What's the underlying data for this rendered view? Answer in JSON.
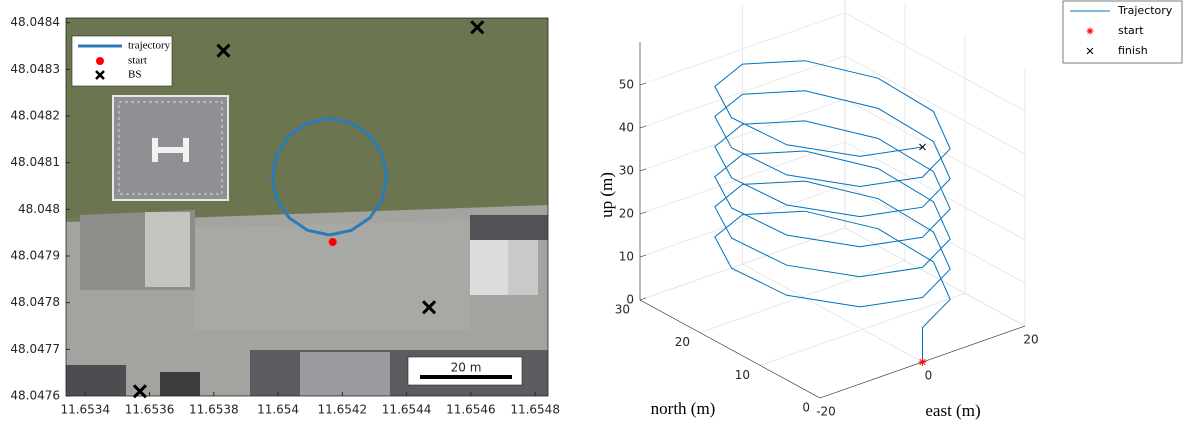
{
  "chart_data": [
    {
      "type": "map",
      "xlim": [
        11.65334,
        11.65484
      ],
      "ylim": [
        48.0476,
        48.04841
      ],
      "xticks": [
        11.6534,
        11.6536,
        11.6538,
        11.654,
        11.6542,
        11.6544,
        11.6546,
        11.6548
      ],
      "yticks": [
        48.0476,
        48.0477,
        48.0478,
        48.0479,
        48.048,
        48.0481,
        48.0482,
        48.0483,
        48.0484
      ],
      "series": [
        {
          "name": "trajectory",
          "color": "#2b7bba",
          "x": [
            11.65416,
            11.654228,
            11.654286,
            11.654325,
            11.654338,
            11.654325,
            11.654286,
            11.654228,
            11.65416,
            11.654092,
            11.654034,
            11.653996,
            11.653982,
            11.653996,
            11.654034,
            11.654092,
            11.65416
          ],
          "y": [
            48.047945,
            48.047955,
            48.047982,
            48.048022,
            48.04807,
            48.048118,
            48.048158,
            48.048185,
            48.048195,
            48.048185,
            48.048158,
            48.048118,
            48.04807,
            48.048022,
            48.047982,
            48.047955,
            48.047945
          ]
        },
        {
          "name": "start",
          "color": "#ff0000",
          "x": [
            11.65417
          ],
          "y": [
            48.04793
          ]
        },
        {
          "name": "BS",
          "color": "#000000",
          "x": [
            11.65383,
            11.65462,
            11.65447,
            11.65357
          ],
          "y": [
            48.04834,
            48.04839,
            48.04779,
            48.04761
          ]
        }
      ],
      "annotation": "20 m"
    },
    {
      "type": "line3d",
      "xlabel": "east (m)",
      "ylabel": "north (m)",
      "zlabel": "up (m)",
      "xlim": [
        -20,
        20
      ],
      "ylim": [
        0,
        30
      ],
      "zlim": [
        0,
        60
      ],
      "xticks": [
        -20,
        0,
        20
      ],
      "yticks": [
        0,
        10,
        20,
        30
      ],
      "zticks": [
        0,
        10,
        20,
        30,
        40,
        50
      ],
      "grid": true,
      "series": [
        {
          "name": "Trajectory",
          "color": "#0072bd",
          "x": [
            0,
            0,
            8.8,
            14.3,
            14.3,
            8.8,
            0,
            -8.8,
            -14.3,
            -14.3,
            -8.8,
            0,
            8.8,
            14.3,
            14.3,
            8.8,
            0,
            -8.8,
            -14.3,
            -14.3,
            -8.8,
            0,
            8.8,
            14.3,
            14.3,
            8.8,
            0,
            -8.8,
            -14.3,
            -14.3,
            -8.8,
            0,
            8.8,
            14.3,
            14.3,
            8.8,
            0,
            -8.8,
            -14.3,
            -14.3,
            -8.8,
            0,
            8.8,
            14.3,
            14.3,
            8.8,
            0,
            -8.8,
            -14.3,
            -14.3,
            -8.8,
            0,
            8.8,
            14.3,
            14.3,
            8.8,
            0,
            -8.8,
            -14.3,
            -14.3,
            -8.8,
            0
          ],
          "y": [
            0,
            0,
            2.9,
            10.4,
            19.6,
            27.1,
            30,
            27.1,
            19.6,
            10.4,
            2.9,
            0,
            2.9,
            10.4,
            19.6,
            27.1,
            30,
            27.1,
            19.6,
            10.4,
            2.9,
            0,
            2.9,
            10.4,
            19.6,
            27.1,
            30,
            27.1,
            19.6,
            10.4,
            2.9,
            0,
            2.9,
            10.4,
            19.6,
            27.1,
            30,
            27.1,
            19.6,
            10.4,
            2.9,
            0,
            2.9,
            10.4,
            19.6,
            27.1,
            30,
            27.1,
            19.6,
            10.4,
            2.9,
            0,
            2.9,
            10.4,
            19.6,
            27.1,
            30,
            27.1,
            19.6,
            10.4,
            2.9,
            0
          ],
          "z": [
            0,
            8,
            8.7,
            9.4,
            10.1,
            10.8,
            11.5,
            12.2,
            12.9,
            13.6,
            14.3,
            15,
            15.7,
            16.4,
            17.1,
            17.8,
            18.5,
            19.2,
            19.9,
            20.6,
            21.3,
            22,
            22.7,
            23.4,
            24.1,
            24.8,
            25.5,
            26.2,
            26.9,
            27.6,
            28.3,
            29,
            29.7,
            30.4,
            31.1,
            31.8,
            32.5,
            33.2,
            33.9,
            34.6,
            35.3,
            36,
            36.7,
            37.4,
            38.1,
            38.8,
            39.5,
            40.2,
            40.9,
            41.6,
            42.3,
            43,
            43.7,
            44.4,
            45.1,
            45.8,
            46.5,
            47.2,
            47.9,
            48.6,
            49.3,
            50
          ]
        },
        {
          "name": "start",
          "color": "#ff0000",
          "x": [
            0
          ],
          "y": [
            0
          ],
          "z": [
            0
          ]
        },
        {
          "name": "finish",
          "color": "#000000",
          "x": [
            0
          ],
          "y": [
            0
          ],
          "z": [
            50
          ]
        }
      ]
    }
  ]
}
